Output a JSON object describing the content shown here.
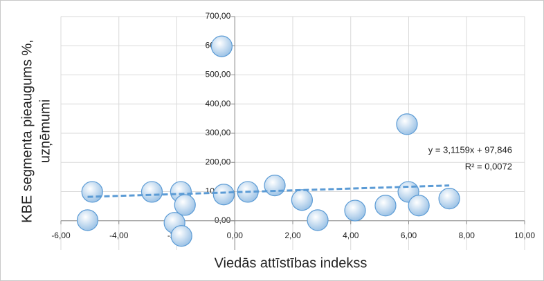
{
  "chart_data": {
    "type": "scatter",
    "x_label": "Viedās attīstības indekss",
    "y_label": [
      "KBE segmenta pieaugums %,",
      "uzņēmumi"
    ],
    "x": [
      -4.92,
      -5.08,
      -2.86,
      -1.86,
      -2.08,
      -1.84,
      -1.72,
      -0.45,
      -0.38,
      0.45,
      1.38,
      2.32,
      2.86,
      4.15,
      5.2,
      5.94,
      5.99,
      6.35,
      7.4
    ],
    "values": [
      99,
      2,
      99,
      99,
      -7,
      -52,
      54,
      598,
      90,
      99,
      121,
      71,
      2,
      35,
      52,
      331,
      99,
      52,
      76
    ],
    "color": "#bdd7ee",
    "xlim": [
      -6,
      10
    ],
    "xticks": [
      {
        "value": -6,
        "label": "-6,00"
      },
      {
        "value": -4,
        "label": "-4,00"
      },
      {
        "value": -2,
        "label": "-2,00"
      },
      {
        "value": 0,
        "label": "0,00"
      },
      {
        "value": 2,
        "label": "2,00"
      },
      {
        "value": 4,
        "label": "4,00"
      },
      {
        "value": 6,
        "label": "6,00"
      },
      {
        "value": 8,
        "label": "8,00"
      },
      {
        "value": 10,
        "label": "10,00"
      }
    ],
    "ylim": [
      -100,
      700
    ],
    "yticks": [
      {
        "value": 0,
        "label": "0,00"
      },
      {
        "value": 100,
        "label": "100,00"
      },
      {
        "value": 200,
        "label": "200,00"
      },
      {
        "value": 300,
        "label": "300,00"
      },
      {
        "value": 400,
        "label": "400,00"
      },
      {
        "value": 500,
        "label": "500,00"
      },
      {
        "value": 600,
        "label": "600,00"
      },
      {
        "value": 700,
        "label": "700,00"
      }
    ],
    "grid": true,
    "trendline": {
      "slope": 3.1159,
      "intercept": 97.846,
      "color": "#5b9bd5",
      "equation": "y = 3,1159x + 97,846",
      "r2": "R² = 0,0072"
    }
  }
}
